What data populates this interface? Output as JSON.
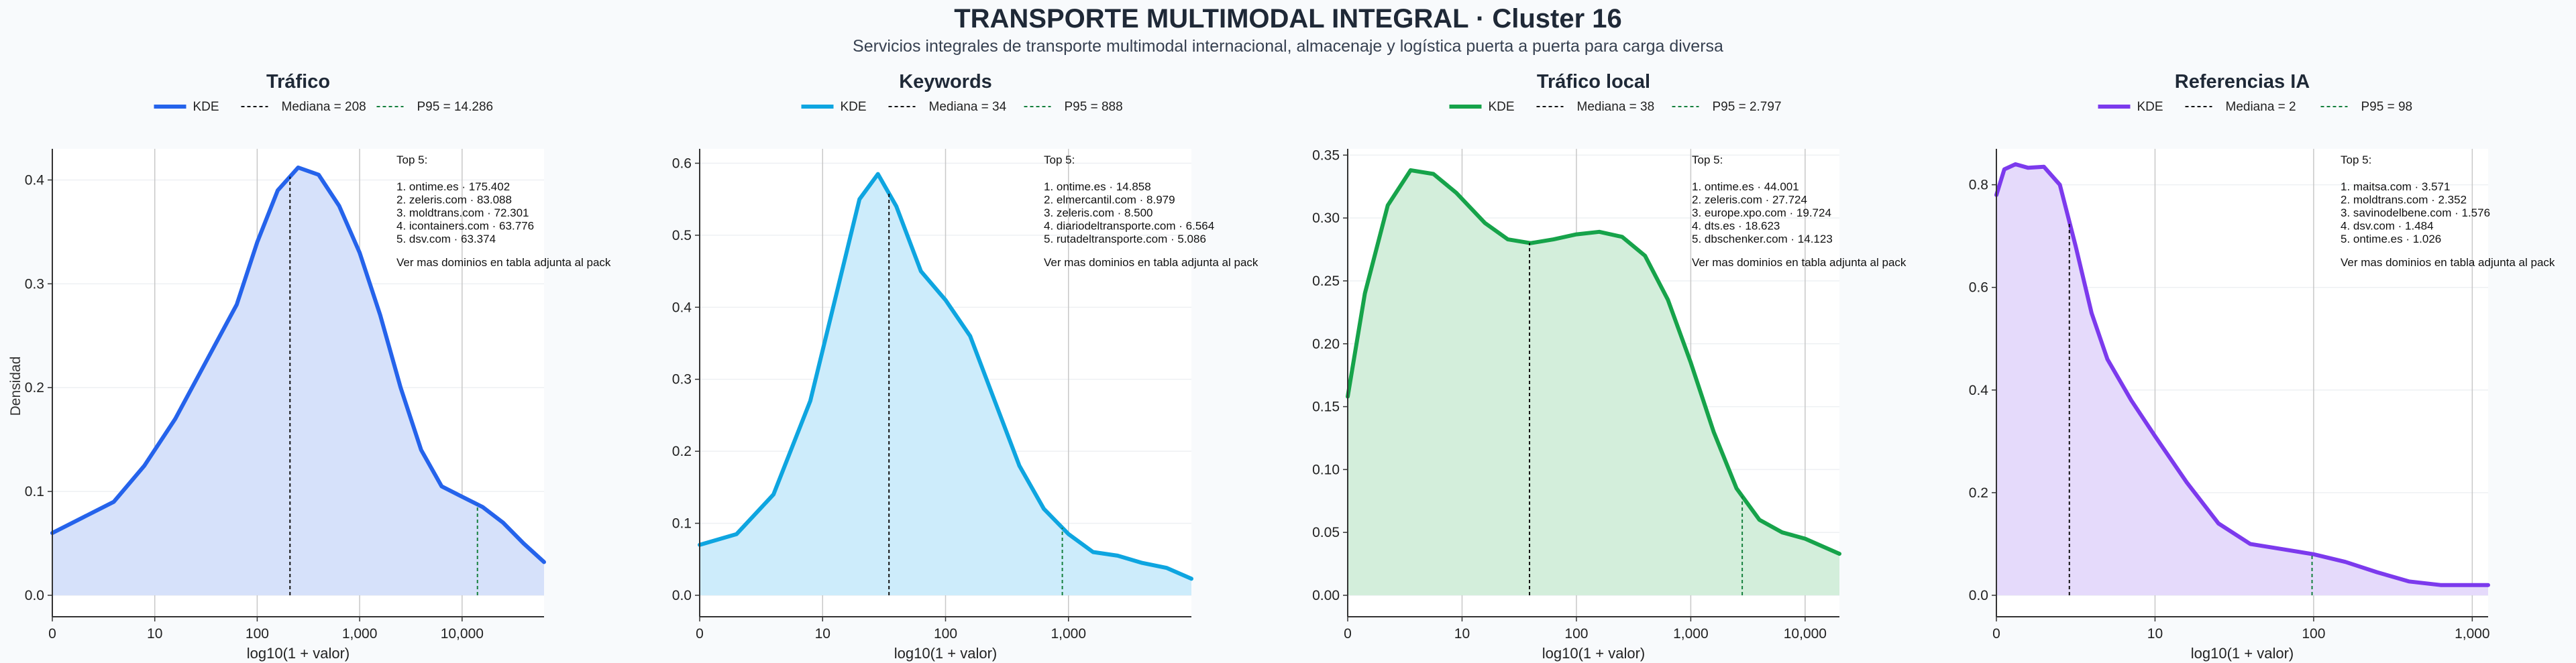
{
  "header": {
    "title": "TRANSPORTE MULTIMODAL INTEGRAL · Cluster 16",
    "subtitle": "Servicios integrales de transporte multimodal internacional, almacenaje y logística puerta a puerta para carga diversa"
  },
  "ylabel_shared": "Densidad",
  "chart_data": [
    {
      "type": "area",
      "title": "Tráfico",
      "xlabel": "log10(1 + valor)",
      "color": "#2563eb",
      "fill": "#d6e1fa",
      "legend": [
        "KDE",
        "Mediana = 208",
        "P95 = 14.286"
      ],
      "xlim": [
        0,
        4.8
      ],
      "ylim": [
        0,
        0.43
      ],
      "xticks": [
        {
          "v": 0,
          "label": "0"
        },
        {
          "v": 1,
          "label": "10"
        },
        {
          "v": 2,
          "label": "100"
        },
        {
          "v": 3,
          "label": "1,000"
        },
        {
          "v": 4,
          "label": "10,000"
        }
      ],
      "yticks": [
        {
          "v": 0,
          "label": "0.0"
        },
        {
          "v": 0.1,
          "label": "0.1"
        },
        {
          "v": 0.2,
          "label": "0.2"
        },
        {
          "v": 0.3,
          "label": "0.3"
        },
        {
          "v": 0.4,
          "label": "0.4"
        }
      ],
      "median": 2.32,
      "p95": 4.15,
      "x": [
        0,
        0.3,
        0.6,
        0.9,
        1.2,
        1.5,
        1.8,
        2.0,
        2.2,
        2.4,
        2.6,
        2.8,
        3.0,
        3.2,
        3.4,
        3.6,
        3.8,
        4.0,
        4.2,
        4.4,
        4.6,
        4.8
      ],
      "y": [
        0.06,
        0.075,
        0.09,
        0.125,
        0.17,
        0.225,
        0.28,
        0.34,
        0.39,
        0.412,
        0.405,
        0.375,
        0.33,
        0.27,
        0.2,
        0.14,
        0.105,
        0.095,
        0.085,
        0.07,
        0.05,
        0.032
      ],
      "top5": {
        "heading": "Top 5:",
        "items": [
          "1. ontime.es · 175.402",
          "2. zeleris.com · 83.088",
          "3. moldtrans.com · 72.301",
          "4. icontainers.com · 63.776",
          "5. dsv.com · 63.374"
        ],
        "note": "Ver mas dominios en tabla adjunta al pack"
      }
    },
    {
      "type": "area",
      "title": "Keywords",
      "xlabel": "log10(1 + valor)",
      "color": "#0ea5e0",
      "fill": "#cdecfb",
      "legend": [
        "KDE",
        "Mediana = 34",
        "P95 = 888"
      ],
      "xlim": [
        0,
        4.0
      ],
      "ylim": [
        0,
        0.62
      ],
      "xticks": [
        {
          "v": 0,
          "label": "0"
        },
        {
          "v": 1,
          "label": "10"
        },
        {
          "v": 2,
          "label": "100"
        },
        {
          "v": 3,
          "label": "1,000"
        }
      ],
      "yticks": [
        {
          "v": 0,
          "label": "0.0"
        },
        {
          "v": 0.1,
          "label": "0.1"
        },
        {
          "v": 0.2,
          "label": "0.2"
        },
        {
          "v": 0.3,
          "label": "0.3"
        },
        {
          "v": 0.4,
          "label": "0.4"
        },
        {
          "v": 0.5,
          "label": "0.5"
        },
        {
          "v": 0.6,
          "label": "0.6"
        }
      ],
      "median": 1.54,
      "p95": 2.95,
      "x": [
        0,
        0.3,
        0.6,
        0.9,
        1.1,
        1.3,
        1.45,
        1.6,
        1.8,
        2.0,
        2.2,
        2.4,
        2.6,
        2.8,
        3.0,
        3.2,
        3.4,
        3.6,
        3.8,
        4.0
      ],
      "y": [
        0.07,
        0.085,
        0.14,
        0.27,
        0.41,
        0.55,
        0.585,
        0.54,
        0.45,
        0.41,
        0.36,
        0.27,
        0.18,
        0.12,
        0.085,
        0.06,
        0.055,
        0.045,
        0.038,
        0.023
      ],
      "top5": {
        "heading": "Top 5:",
        "items": [
          "1. ontime.es · 14.858",
          "2. elmercantil.com · 8.979",
          "3. zeleris.com · 8.500",
          "4. diariodeltransporte.com · 6.564",
          "5. rutadeltransporte.com · 5.086"
        ],
        "note": "Ver mas dominios en tabla adjunta al pack"
      }
    },
    {
      "type": "area",
      "title": "Tráfico local",
      "xlabel": "log10(1 + valor)",
      "color": "#16a34a",
      "fill": "#d3eedb",
      "legend": [
        "KDE",
        "Mediana = 38",
        "P95 = 2.797"
      ],
      "xlim": [
        0,
        4.3
      ],
      "ylim": [
        0,
        0.355
      ],
      "xticks": [
        {
          "v": 0,
          "label": "0"
        },
        {
          "v": 1,
          "label": "10"
        },
        {
          "v": 2,
          "label": "100"
        },
        {
          "v": 3,
          "label": "1,000"
        },
        {
          "v": 4,
          "label": "10,000"
        }
      ],
      "yticks": [
        {
          "v": 0,
          "label": "0.00"
        },
        {
          "v": 0.05,
          "label": "0.05"
        },
        {
          "v": 0.1,
          "label": "0.10"
        },
        {
          "v": 0.15,
          "label": "0.15"
        },
        {
          "v": 0.2,
          "label": "0.20"
        },
        {
          "v": 0.25,
          "label": "0.25"
        },
        {
          "v": 0.3,
          "label": "0.30"
        },
        {
          "v": 0.35,
          "label": "0.35"
        }
      ],
      "median": 1.59,
      "p95": 3.45,
      "x": [
        0,
        0.15,
        0.35,
        0.55,
        0.75,
        0.95,
        1.2,
        1.4,
        1.6,
        1.8,
        2.0,
        2.2,
        2.4,
        2.6,
        2.8,
        3.0,
        3.2,
        3.4,
        3.6,
        3.8,
        4.0,
        4.3
      ],
      "y": [
        0.158,
        0.24,
        0.31,
        0.338,
        0.335,
        0.32,
        0.296,
        0.283,
        0.28,
        0.283,
        0.287,
        0.289,
        0.285,
        0.27,
        0.235,
        0.185,
        0.13,
        0.085,
        0.06,
        0.05,
        0.045,
        0.033
      ],
      "top5": {
        "heading": "Top 5:",
        "items": [
          "1. ontime.es · 44.001",
          "2. zeleris.com · 27.724",
          "3. europe.xpo.com · 19.724",
          "4. dts.es · 18.623",
          "5. dbschenker.com · 14.123"
        ],
        "note": "Ver mas dominios en tabla adjunta al pack"
      }
    },
    {
      "type": "area",
      "title": "Referencias IA",
      "xlabel": "log10(1 + valor)",
      "color": "#7c3aed",
      "fill": "#e5dafb",
      "legend": [
        "KDE",
        "Mediana = 2",
        "P95 = 98"
      ],
      "xlim": [
        0,
        3.1
      ],
      "ylim": [
        0,
        0.87
      ],
      "xticks": [
        {
          "v": 0,
          "label": "0"
        },
        {
          "v": 1,
          "label": "10"
        },
        {
          "v": 2,
          "label": "100"
        },
        {
          "v": 3,
          "label": "1,000"
        }
      ],
      "yticks": [
        {
          "v": 0,
          "label": "0.0"
        },
        {
          "v": 0.2,
          "label": "0.2"
        },
        {
          "v": 0.4,
          "label": "0.4"
        },
        {
          "v": 0.6,
          "label": "0.6"
        },
        {
          "v": 0.8,
          "label": "0.8"
        }
      ],
      "median": 0.46,
      "p95": 1.99,
      "x": [
        0,
        0.05,
        0.12,
        0.2,
        0.3,
        0.4,
        0.5,
        0.6,
        0.7,
        0.85,
        1.0,
        1.2,
        1.4,
        1.6,
        1.8,
        2.0,
        2.2,
        2.4,
        2.6,
        2.8,
        3.1
      ],
      "y": [
        0.78,
        0.83,
        0.84,
        0.833,
        0.835,
        0.8,
        0.68,
        0.55,
        0.46,
        0.38,
        0.31,
        0.22,
        0.14,
        0.1,
        0.09,
        0.08,
        0.065,
        0.045,
        0.027,
        0.02,
        0.02
      ],
      "top5": {
        "heading": "Top 5:",
        "items": [
          "1. maitsa.com · 3.571",
          "2. moldtrans.com · 2.352",
          "3. savinodelbene.com · 1.576",
          "4. dsv.com · 1.484",
          "5. ontime.es · 1.026"
        ],
        "note": "Ver mas dominios en tabla adjunta al pack"
      }
    }
  ]
}
